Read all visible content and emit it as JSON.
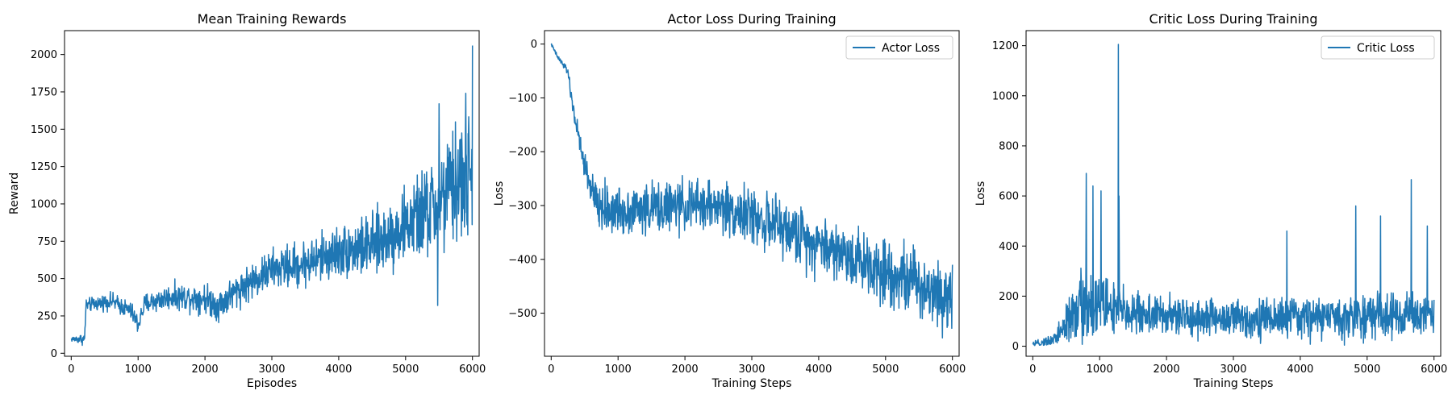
{
  "colors": {
    "series": "#1f77b4",
    "axes": "#000000",
    "legend_border": "#cccccc"
  },
  "chart_data": [
    {
      "type": "line",
      "title": "Mean Training Rewards",
      "xlabel": "Episodes",
      "ylabel": "Reward",
      "xlim": [
        -100,
        6100
      ],
      "ylim": [
        -20,
        2160
      ],
      "xticks": [
        0,
        1000,
        2000,
        3000,
        4000,
        5000,
        6000
      ],
      "yticks": [
        0,
        250,
        500,
        750,
        1000,
        1250,
        1500,
        1750,
        2000
      ],
      "legend": null,
      "grid": false,
      "series": [
        {
          "trend": [
            [
              0,
              95
            ],
            [
              200,
              95
            ],
            [
              220,
              320
            ],
            [
              600,
              350
            ],
            [
              900,
              280
            ],
            [
              1000,
              190
            ],
            [
              1100,
              330
            ],
            [
              1500,
              380
            ],
            [
              2000,
              370
            ],
            [
              2200,
              320
            ],
            [
              2500,
              430
            ],
            [
              3000,
              560
            ],
            [
              3500,
              600
            ],
            [
              4000,
              680
            ],
            [
              4500,
              720
            ],
            [
              5000,
              850
            ],
            [
              5500,
              1000
            ],
            [
              5800,
              1150
            ],
            [
              6000,
              1150
            ]
          ],
          "noise": [
            [
              0,
              15
            ],
            [
              220,
              40
            ],
            [
              1000,
              60
            ],
            [
              3000,
              120
            ],
            [
              4000,
              160
            ],
            [
              5000,
              220
            ],
            [
              5500,
              320
            ],
            [
              6000,
              420
            ]
          ],
          "spikes": [
            [
              5500,
              1670
            ],
            [
              6000,
              2060
            ],
            [
              5900,
              1740
            ],
            [
              5480,
              320
            ]
          ]
        }
      ]
    },
    {
      "type": "line",
      "title": "Actor Loss During Training",
      "xlabel": "Training Steps",
      "ylabel": "Loss",
      "xlim": [
        -100,
        6100
      ],
      "ylim": [
        -580,
        25
      ],
      "xticks": [
        0,
        1000,
        2000,
        3000,
        4000,
        5000,
        6000
      ],
      "yticks": [
        0,
        -100,
        -200,
        -300,
        -400,
        -500
      ],
      "legend": "top-right",
      "grid": false,
      "series": [
        {
          "name": "Actor Loss",
          "trend": [
            [
              0,
              0
            ],
            [
              100,
              -25
            ],
            [
              250,
              -50
            ],
            [
              300,
              -100
            ],
            [
              450,
              -200
            ],
            [
              600,
              -270
            ],
            [
              700,
              -305
            ],
            [
              1000,
              -310
            ],
            [
              2000,
              -300
            ],
            [
              2500,
              -300
            ],
            [
              3000,
              -320
            ],
            [
              4000,
              -370
            ],
            [
              5000,
              -420
            ],
            [
              6000,
              -470
            ]
          ],
          "noise": [
            [
              0,
              2
            ],
            [
              250,
              8
            ],
            [
              500,
              25
            ],
            [
              700,
              40
            ],
            [
              3000,
              45
            ],
            [
              6000,
              60
            ]
          ],
          "spikes": [
            [
              6000,
              -560
            ],
            [
              6000,
              -410
            ]
          ]
        }
      ]
    },
    {
      "type": "line",
      "title": "Critic Loss During Training",
      "xlabel": "Training Steps",
      "ylabel": "Loss",
      "xlim": [
        -100,
        6100
      ],
      "ylim": [
        -40,
        1260
      ],
      "xticks": [
        0,
        1000,
        2000,
        3000,
        4000,
        5000,
        6000
      ],
      "yticks": [
        0,
        200,
        400,
        600,
        800,
        1000,
        1200
      ],
      "legend": "top-right",
      "grid": false,
      "series": [
        {
          "name": "Critic Loss",
          "trend": [
            [
              0,
              5
            ],
            [
              300,
              25
            ],
            [
              500,
              90
            ],
            [
              800,
              180
            ],
            [
              1000,
              170
            ],
            [
              1300,
              140
            ],
            [
              2000,
              120
            ],
            [
              3000,
              110
            ],
            [
              4000,
              115
            ],
            [
              5000,
              120
            ],
            [
              6000,
              130
            ]
          ],
          "noise": [
            [
              0,
              10
            ],
            [
              300,
              20
            ],
            [
              700,
              130
            ],
            [
              1000,
              130
            ],
            [
              1300,
              90
            ],
            [
              2000,
              70
            ],
            [
              6000,
              80
            ]
          ],
          "spikes": [
            [
              1280,
              1205
            ],
            [
              800,
              690
            ],
            [
              900,
              640
            ],
            [
              1020,
              620
            ],
            [
              1290,
              600
            ],
            [
              5660,
              665
            ],
            [
              4830,
              560
            ],
            [
              5200,
              520
            ],
            [
              3800,
              460
            ],
            [
              5900,
              480
            ]
          ]
        }
      ]
    }
  ]
}
